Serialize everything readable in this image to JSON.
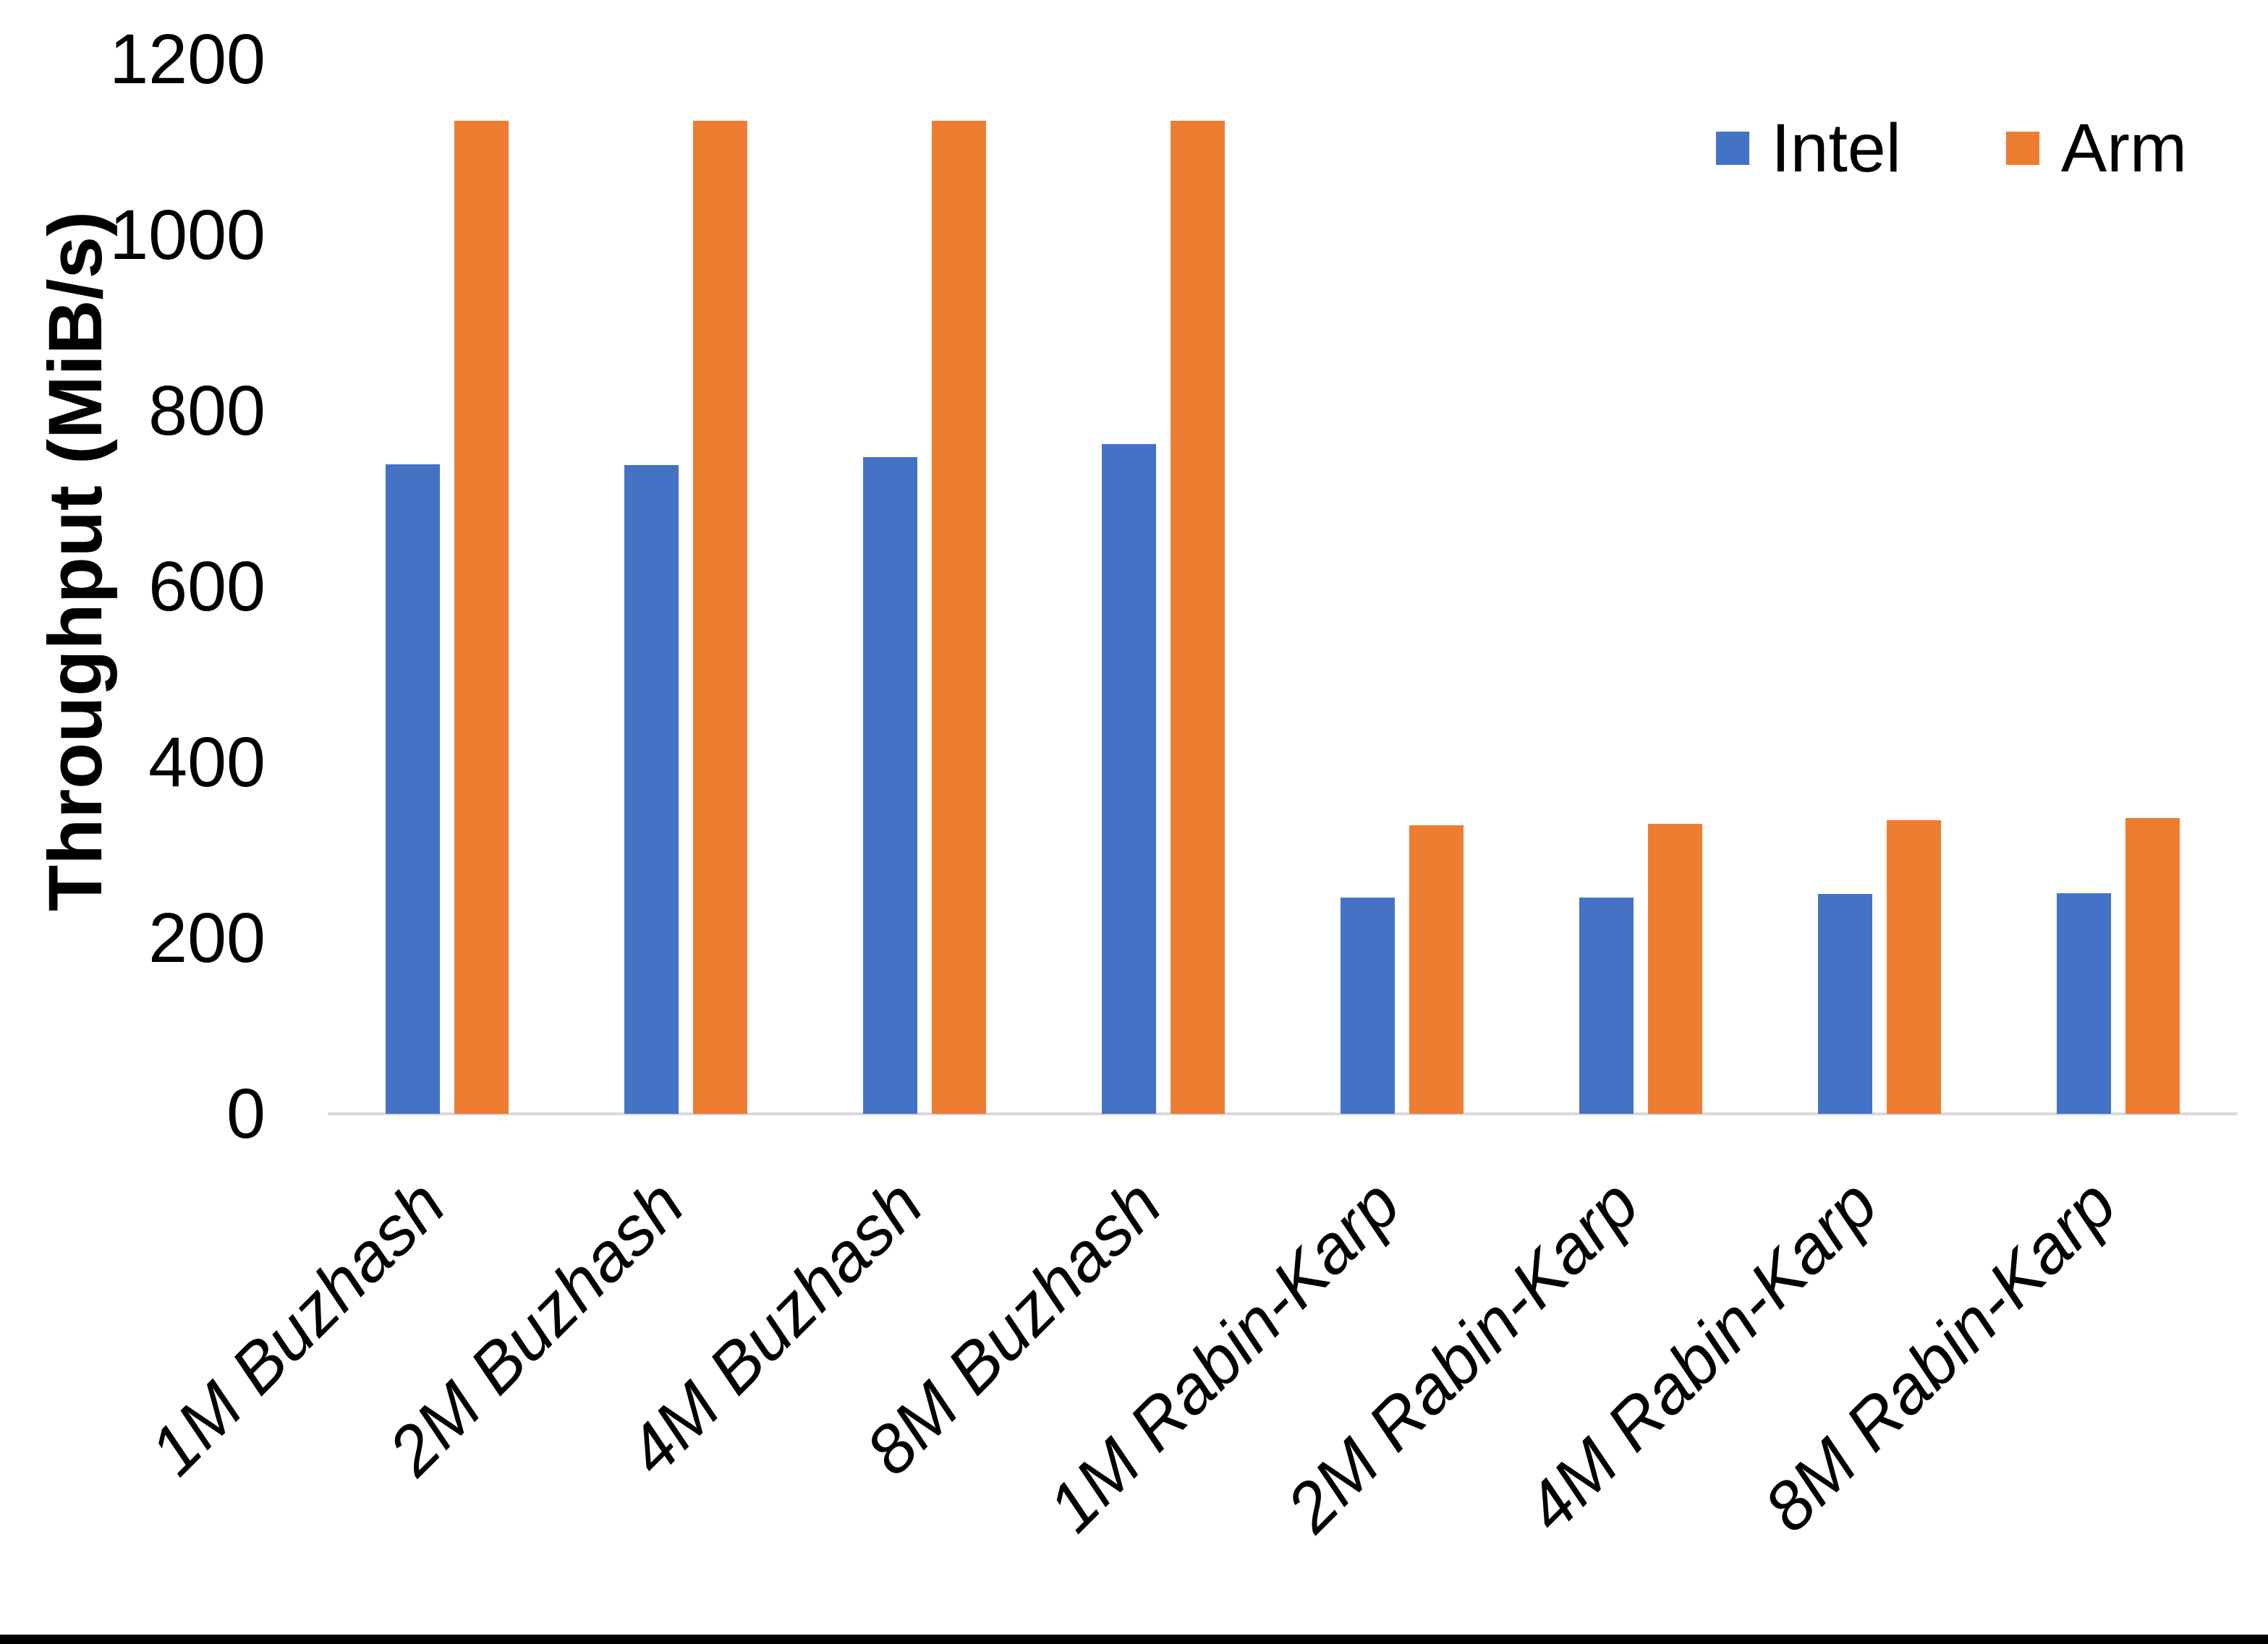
{
  "chart_data": {
    "type": "bar",
    "title": "",
    "xlabel": "",
    "ylabel": "Throughput (MiB/s)",
    "ylim": [
      0,
      1200
    ],
    "yticks": [
      0,
      200,
      400,
      600,
      800,
      1000,
      1200
    ],
    "grid": false,
    "legend_position": "top-right",
    "categories": [
      "1M Buzhash",
      "2M Buzhash",
      "4M Buzhash",
      "8M Buzhash",
      "1M Rabin-Karp",
      "2M Rabin-Karp",
      "4M Rabin-Karp",
      "8M Rabin-Karp"
    ],
    "series": [
      {
        "name": "Intel",
        "color": "#4472C4",
        "values": [
          739,
          738,
          747,
          762,
          246,
          246,
          250,
          251
        ]
      },
      {
        "name": "Arm",
        "color": "#ED7D31",
        "values": [
          1130,
          1130,
          1130,
          1130,
          328,
          330,
          334,
          337
        ]
      }
    ]
  },
  "colors": {
    "axis_line": "#D9D9D9",
    "text": "#000000",
    "background": "#FFFFFF",
    "bottom_border": "#000000"
  }
}
